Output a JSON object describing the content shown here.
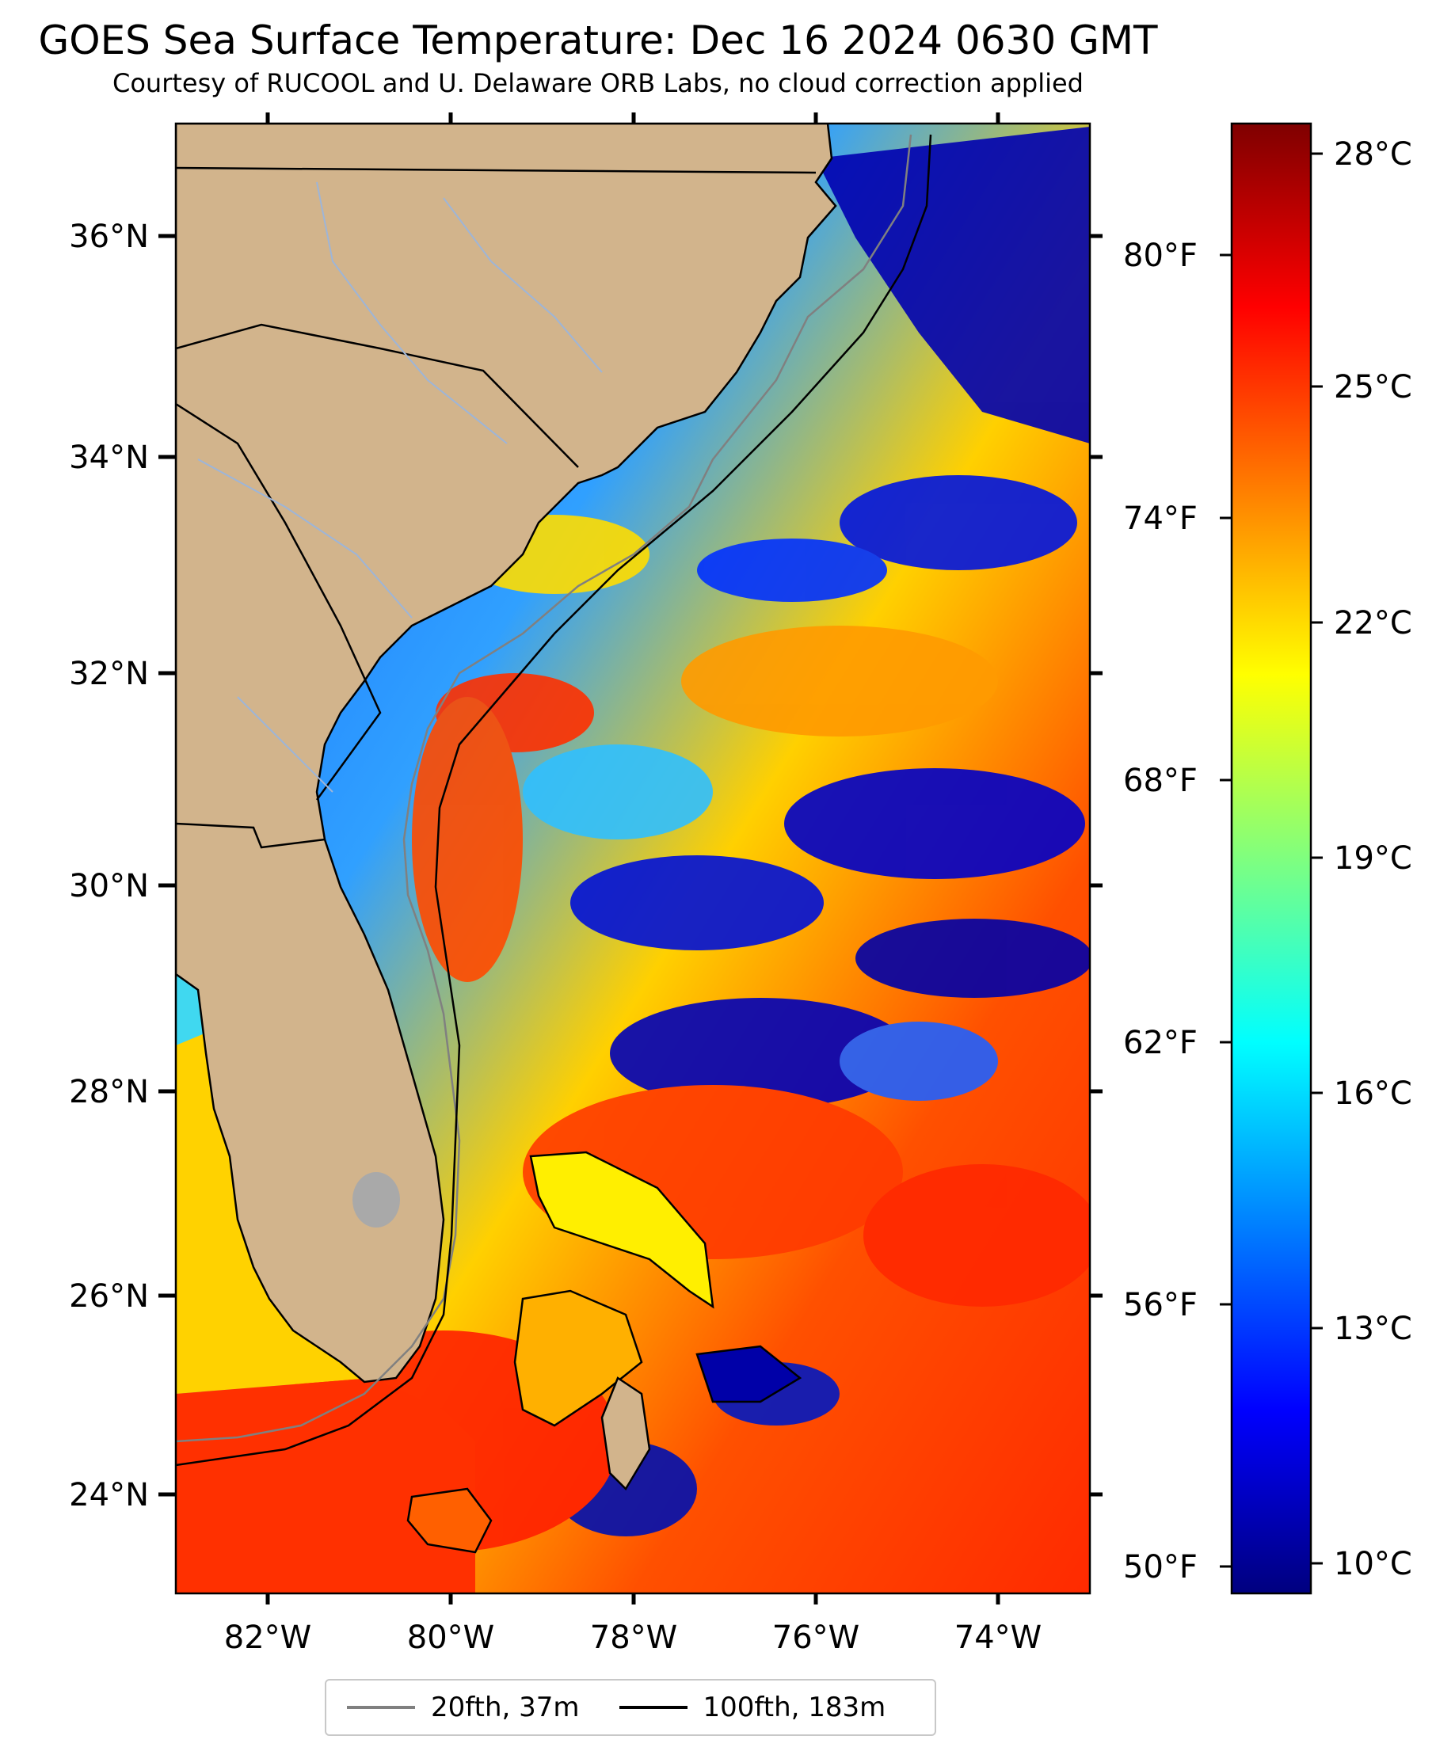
{
  "title": "GOES Sea Surface Temperature: Dec 16 2024 0630 GMT",
  "subtitle": "Courtesy of RUCOOL and U. Delaware ORB Labs, no cloud correction applied",
  "map": {
    "lat_labels": [
      "36°N",
      "34°N",
      "32°N",
      "30°N",
      "28°N",
      "26°N",
      "24°N"
    ],
    "lon_labels": [
      "82°W",
      "80°W",
      "78°W",
      "76°W",
      "74°W"
    ],
    "fahrenheit_labels": [
      "80°F",
      "74°F",
      "68°F",
      "62°F",
      "56°F",
      "50°F"
    ],
    "land_color": "#d2b48c",
    "lake_color": "#a9a9a9",
    "river_color": "#9db5d8"
  },
  "colorbar": {
    "labels": [
      "28°C",
      "25°C",
      "22°C",
      "19°C",
      "16°C",
      "13°C",
      "10°C"
    ],
    "colormap": "jet",
    "colors": [
      "#00007f",
      "#0000ff",
      "#007fff",
      "#00ffff",
      "#7fff7f",
      "#ffff00",
      "#ff7f00",
      "#ff0000",
      "#7f0000"
    ]
  },
  "legend": {
    "items": [
      {
        "label": "20fth, 37m",
        "color": "#808080"
      },
      {
        "label": "100fth, 183m",
        "color": "#000000"
      }
    ]
  }
}
